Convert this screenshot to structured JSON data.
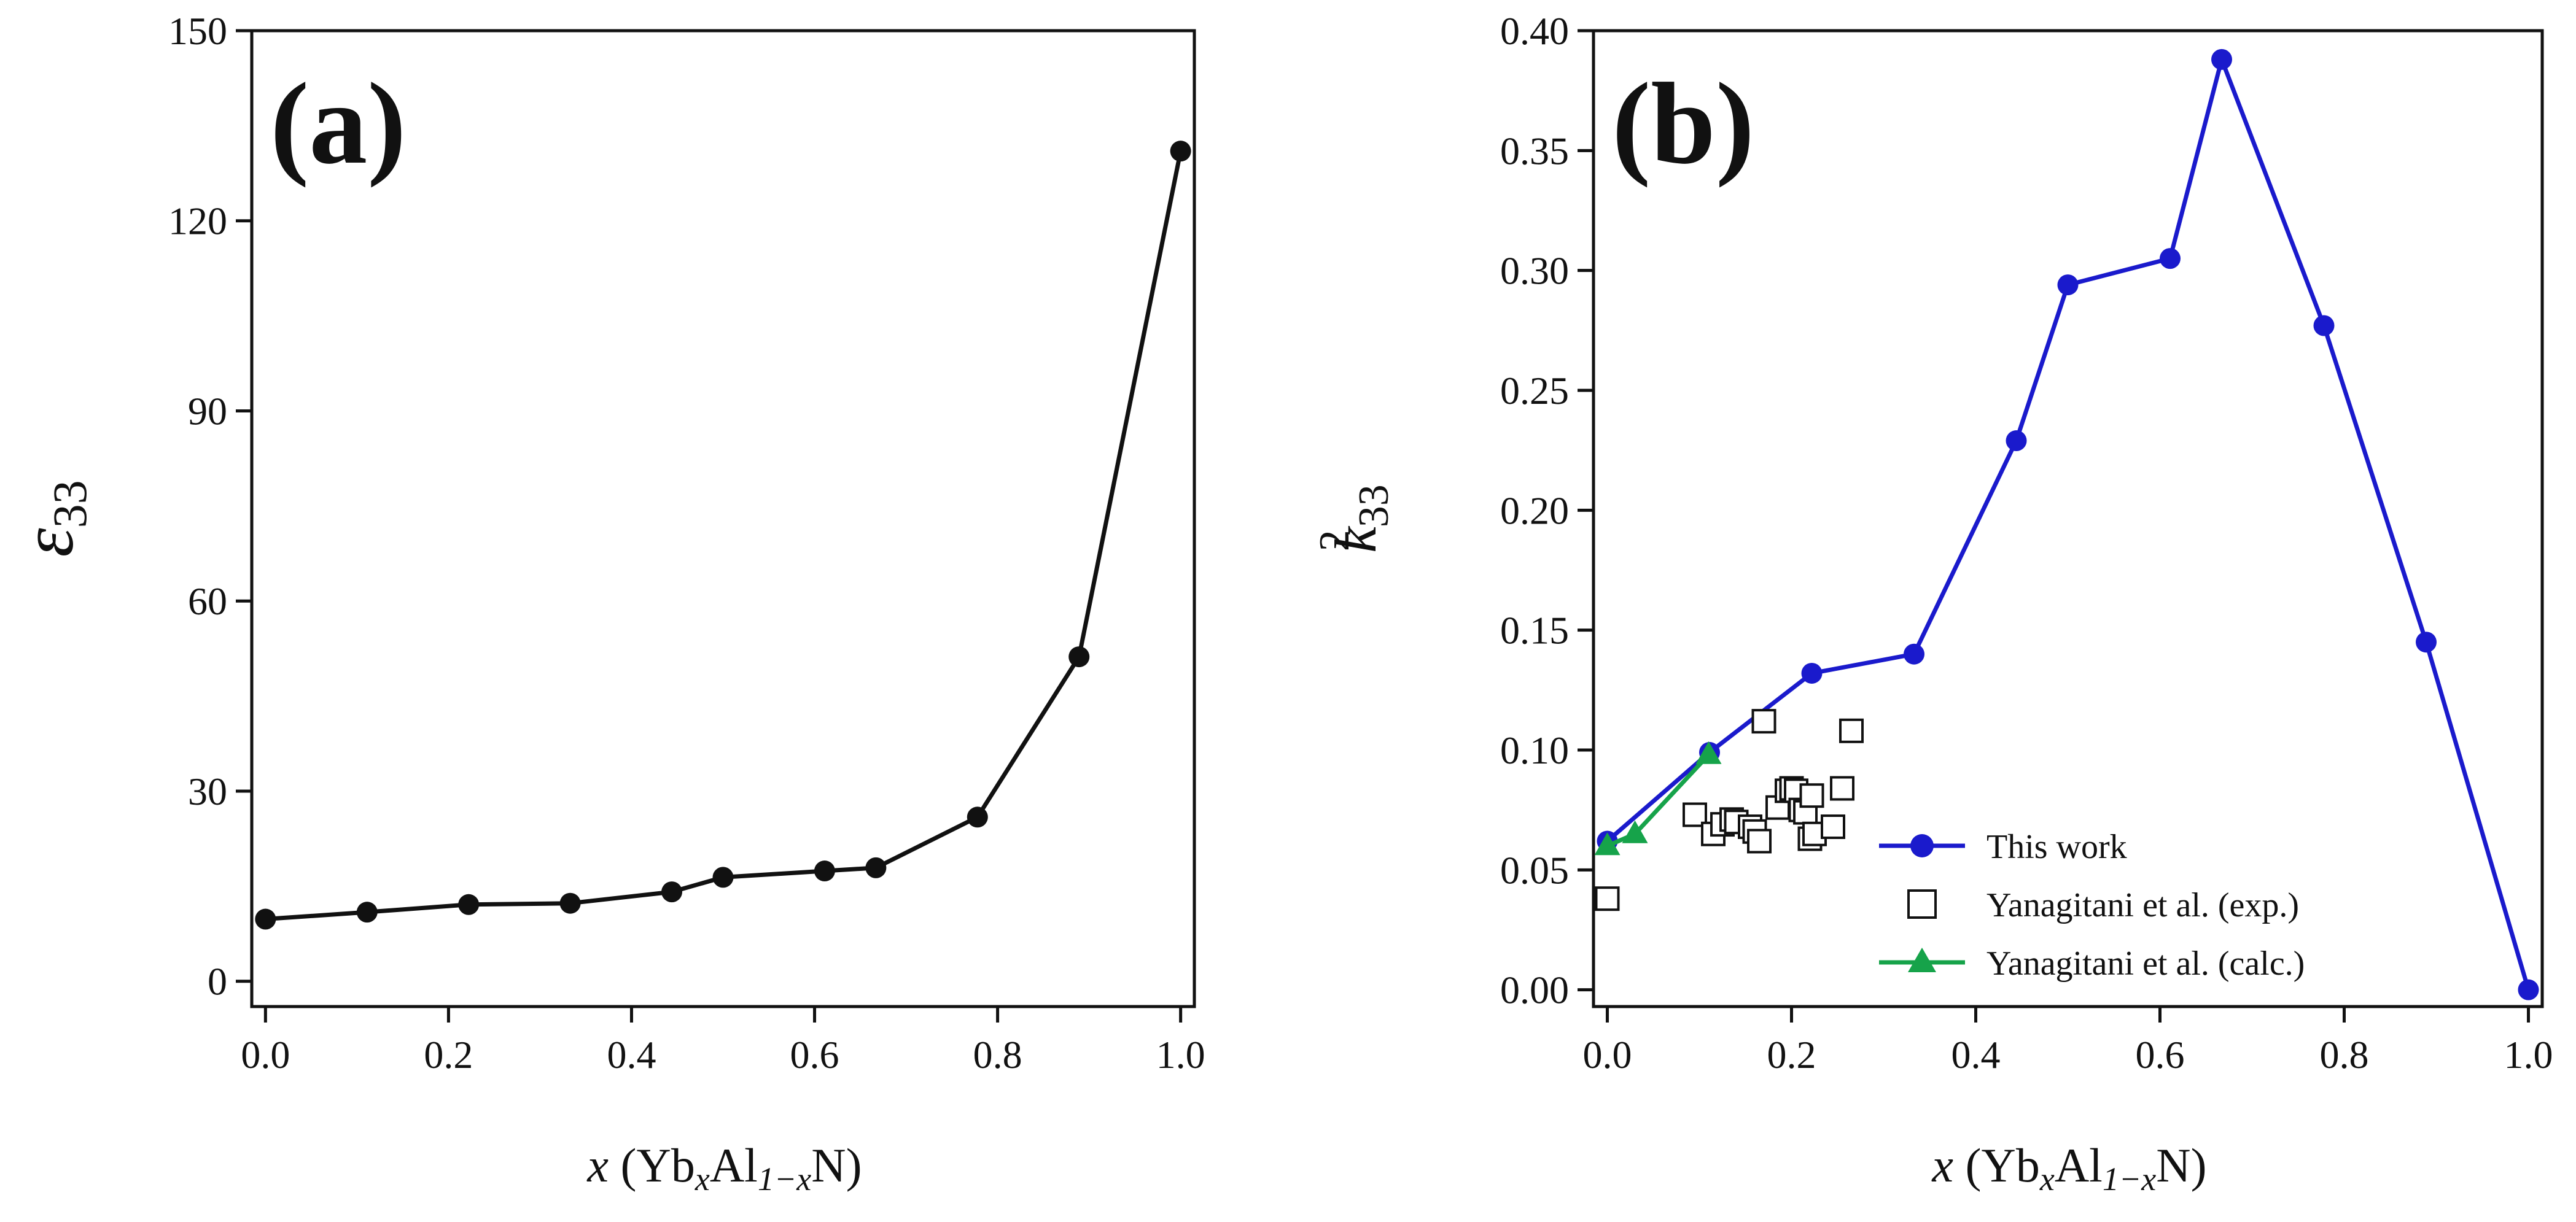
{
  "chart_data": [
    {
      "type": "line",
      "panel_label": "(a)",
      "title": "",
      "xlabel": {
        "var": "x",
        "formula_pre": "(Yb",
        "sub1": "x",
        "formula_mid": "Al",
        "sub2": "1−x",
        "formula_post": "N)"
      },
      "ylabel": {
        "symbol": "ε",
        "subscript": "33"
      },
      "xlim": [
        -0.015,
        1.015
      ],
      "ylim": [
        -4,
        150
      ],
      "xticks": [
        0.0,
        0.2,
        0.4,
        0.6,
        0.8,
        1.0
      ],
      "xtick_labels": [
        "0.0",
        "0.2",
        "0.4",
        "0.6",
        "0.8",
        "1.0"
      ],
      "yticks": [
        0,
        30,
        60,
        90,
        120,
        150
      ],
      "ytick_labels": [
        "0",
        "30",
        "60",
        "90",
        "120",
        "150"
      ],
      "series": [
        {
          "name": "ε33",
          "color": "#111111",
          "marker": "circle",
          "x": [
            0.0,
            0.111,
            0.222,
            0.333,
            0.444,
            0.5,
            0.611,
            0.667,
            0.778,
            0.889,
            1.0
          ],
          "y": [
            9.8,
            10.9,
            12.1,
            12.3,
            14.1,
            16.4,
            17.4,
            17.9,
            25.9,
            51.2,
            131.0
          ]
        }
      ]
    },
    {
      "type": "line",
      "panel_label": "(b)",
      "title": "",
      "xlabel": {
        "var": "x",
        "formula_pre": "(Yb",
        "sub1": "x",
        "formula_mid": "Al",
        "sub2": "1−x",
        "formula_post": "N)"
      },
      "ylabel": {
        "symbol": "k",
        "superscript": "2",
        "subscript": "33"
      },
      "xlim": [
        -0.015,
        1.015
      ],
      "ylim": [
        -0.007,
        0.4
      ],
      "xticks": [
        0.0,
        0.2,
        0.4,
        0.6,
        0.8,
        1.0
      ],
      "xtick_labels": [
        "0.0",
        "0.2",
        "0.4",
        "0.6",
        "0.8",
        "1.0"
      ],
      "yticks": [
        0.0,
        0.05,
        0.1,
        0.15,
        0.2,
        0.25,
        0.3,
        0.35,
        0.4
      ],
      "ytick_labels": [
        "0.00",
        "0.05",
        "0.10",
        "0.15",
        "0.20",
        "0.25",
        "0.30",
        "0.35",
        "0.40"
      ],
      "legend_position": "bottom-right",
      "series": [
        {
          "name": "This work",
          "color": "#1a1acc",
          "marker": "circle",
          "line": true,
          "x": [
            0.0,
            0.111,
            0.222,
            0.333,
            0.444,
            0.5,
            0.611,
            0.667,
            0.778,
            0.889,
            1.0
          ],
          "y": [
            0.062,
            0.099,
            0.132,
            0.14,
            0.229,
            0.294,
            0.305,
            0.388,
            0.277,
            0.145,
            0.0
          ]
        },
        {
          "name": "Yanagitani et al. (exp.)",
          "color": "#111111",
          "marker": "open-square",
          "line": false,
          "x": [
            0.0,
            0.095,
            0.115,
            0.125,
            0.135,
            0.14,
            0.155,
            0.16,
            0.165,
            0.17,
            0.185,
            0.195,
            0.2,
            0.205,
            0.21,
            0.215,
            0.22,
            0.222,
            0.225,
            0.245,
            0.255,
            0.265
          ],
          "y": [
            0.038,
            0.073,
            0.065,
            0.069,
            0.071,
            0.07,
            0.068,
            0.066,
            0.062,
            0.112,
            0.076,
            0.083,
            0.084,
            0.083,
            0.075,
            0.074,
            0.063,
            0.081,
            0.065,
            0.068,
            0.084,
            0.108
          ]
        },
        {
          "name": "Yanagitani et al. (calc.)",
          "color": "#16a34a",
          "marker": "triangle",
          "line": true,
          "x": [
            0.0,
            0.03,
            0.11
          ],
          "y": [
            0.06,
            0.065,
            0.098
          ]
        }
      ]
    }
  ]
}
